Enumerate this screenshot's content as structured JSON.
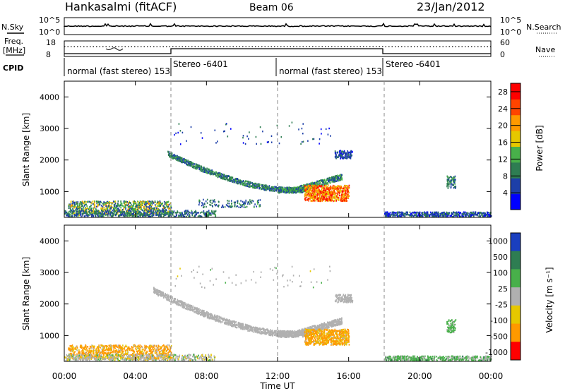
{
  "header": {
    "station": "Hankasalmi (fitACF)",
    "beam": "Beam 06",
    "date": "23/Jan/2012"
  },
  "noise_panel": {
    "left_label": "N.Sky",
    "right_label": "N.Search",
    "left_ticks": [
      "10^5",
      "10^0"
    ],
    "right_ticks": [
      "10^5",
      "10^0"
    ]
  },
  "freq_panel": {
    "left_label_line1": "Freq.",
    "left_label_line2": "[MHz]",
    "left_ticks": [
      "18",
      "8"
    ],
    "right_label": "Nave",
    "right_ticks": [
      "60",
      "0"
    ]
  },
  "cpid_panel": {
    "label": "CPID",
    "segments": [
      {
        "start_hour": 0,
        "text": "normal (fast stereo) 153"
      },
      {
        "start_hour": 6,
        "text": "Stereo -6401"
      },
      {
        "start_hour": 12,
        "text": "normal (fast stereo) 153"
      },
      {
        "start_hour": 18,
        "text": "Stereo -6401"
      }
    ]
  },
  "power_panel": {
    "ylabel": "Slant Range [km]",
    "y_ticks": [
      "1000",
      "2000",
      "3000",
      "4000"
    ],
    "colorbar_label": "Power [dB]",
    "colorbar_ticks": [
      "4",
      "8",
      "12",
      "16",
      "20",
      "24",
      "28"
    ]
  },
  "velocity_panel": {
    "ylabel": "Slant Range [km]",
    "y_ticks": [
      "1000",
      "2000",
      "3000",
      "4000"
    ],
    "colorbar_label": "Velocity [m s⁻¹]",
    "colorbar_ticks": [
      "1000",
      "500",
      "100",
      "25",
      "-25",
      "-100",
      "-500",
      "-1000"
    ]
  },
  "x_axis": {
    "label": "Time UT",
    "ticks": [
      "00:00",
      "04:00",
      "08:00",
      "12:00",
      "16:00",
      "20:00",
      "00:00"
    ]
  },
  "colors": {
    "power_scale": [
      "#0000ff",
      "#1d3fa8",
      "#2e7d52",
      "#48b04a",
      "#e6c800",
      "#ff9900",
      "#ff4400",
      "#ff0000"
    ],
    "velocity_scale": [
      "#1a3fbf",
      "#2e7d52",
      "#48b04a",
      "#b0b0b0",
      "#e6c800",
      "#ff9900",
      "#ff0000"
    ]
  },
  "chart_data": [
    {
      "type": "heatmap",
      "title": "Power",
      "xlabel": "Time UT",
      "ylabel": "Slant Range [km]",
      "xlim_hours": [
        0,
        24
      ],
      "ylim_km": [
        180,
        4500
      ],
      "colorbar": {
        "label": "Power [dB]",
        "range": [
          0,
          30
        ]
      },
      "regions": [
        {
          "name": "near-range morning echoes",
          "hours": [
            0.2,
            6.0
          ],
          "range_km": [
            300,
            700
          ],
          "value_db": 14
        },
        {
          "name": "main arc",
          "hours": [
            5.8,
            15.5
          ],
          "range_km": [
            1000,
            2300
          ],
          "value_db": 10
        },
        {
          "name": "afternoon strong patch",
          "hours": [
            13.5,
            16.0
          ],
          "range_km": [
            700,
            1200
          ],
          "value_db": 24
        },
        {
          "name": "distant patch",
          "hours": [
            15.2,
            16.2
          ],
          "range_km": [
            2000,
            2300
          ],
          "value_db": 6
        },
        {
          "name": "evening echoes",
          "hours": [
            21.5,
            22.0
          ],
          "range_km": [
            1100,
            1500
          ],
          "value_db": 8
        },
        {
          "name": "near-range evening",
          "hours": [
            18.0,
            24.0
          ],
          "range_km": [
            200,
            350
          ],
          "value_db": 6
        }
      ]
    },
    {
      "type": "heatmap",
      "title": "Velocity",
      "xlabel": "Time UT",
      "ylabel": "Slant Range [km]",
      "xlim_hours": [
        0,
        24
      ],
      "ylim_km": [
        180,
        4500
      ],
      "colorbar": {
        "label": "Velocity [m s⁻¹]",
        "range": [
          -1000,
          1000
        ]
      },
      "regions": [
        {
          "name": "ground scatter arc",
          "hours": [
            5.0,
            16.0
          ],
          "range_km": [
            700,
            2300
          ],
          "value_ms": 0
        },
        {
          "name": "afternoon patch",
          "hours": [
            13.5,
            16.0
          ],
          "range_km": [
            700,
            1200
          ],
          "value_ms": -150
        },
        {
          "name": "near-range morning",
          "hours": [
            0.2,
            6.0
          ],
          "range_km": [
            300,
            700
          ],
          "value_ms": -150
        }
      ]
    }
  ]
}
